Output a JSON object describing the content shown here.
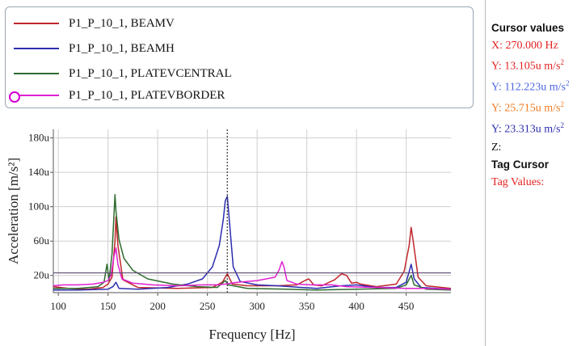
{
  "legend": [
    {
      "label": "P1_P_10_1, BEAMV",
      "color": "#c0262b"
    },
    {
      "label": "P1_P_10_1, BEAMH",
      "color": "#2d2db0"
    },
    {
      "label": "P1_P_10_1, PLATEVCENTRAL",
      "color": "#2e6b2e"
    },
    {
      "label": "P1_P_10_1, PLATEVBORDER",
      "color": "#e020d0"
    }
  ],
  "cursor_panel": {
    "title": "Cursor values",
    "x": "X: 270.000 Hz",
    "y1": "Y: 13.105u m/s",
    "y2": "Y: 112.223u m/s",
    "y3": "Y: 25.715u m/s",
    "y4": "Y: 23.313u m/s",
    "sup": "2",
    "z": "Z:",
    "tag_cursor": "Tag Cursor",
    "tag_values": "Tag Values:",
    "colors": {
      "x": "#e52222",
      "y1": "#e52222",
      "y2": "#4a66e0",
      "y3": "#f07a20",
      "y4": "#2c2cb0"
    }
  },
  "chart_data": {
    "type": "line",
    "xlabel": "Frequency [Hz]",
    "ylabel": "Acceleration [m/s²]",
    "xlim": [
      95,
      495
    ],
    "ylim": [
      0,
      190
    ],
    "x_ticks": [
      "100",
      "150",
      "200",
      "250",
      "300",
      "350",
      "400",
      "450"
    ],
    "x_tick_values": [
      100,
      150,
      200,
      250,
      300,
      350,
      400,
      450
    ],
    "y_ticks": [
      "20u",
      "60u",
      "100u",
      "140u",
      "180u"
    ],
    "y_tick_values": [
      20,
      60,
      100,
      140,
      180
    ],
    "grid": true,
    "cursor_x": 270,
    "cursor_y_line": 23,
    "series": [
      {
        "name": "P1_P_10_1, BEAMV",
        "color": "#c0262b",
        "points": [
          [
            95,
            7
          ],
          [
            110,
            5
          ],
          [
            130,
            4
          ],
          [
            145,
            6
          ],
          [
            150,
            10
          ],
          [
            154,
            18
          ],
          [
            157,
            60
          ],
          [
            158,
            88
          ],
          [
            160,
            55
          ],
          [
            165,
            15
          ],
          [
            180,
            6
          ],
          [
            220,
            5
          ],
          [
            255,
            6
          ],
          [
            265,
            12
          ],
          [
            270,
            22
          ],
          [
            275,
            10
          ],
          [
            290,
            8
          ],
          [
            320,
            8
          ],
          [
            340,
            9
          ],
          [
            348,
            14
          ],
          [
            352,
            16
          ],
          [
            357,
            9
          ],
          [
            365,
            8
          ],
          [
            378,
            15
          ],
          [
            385,
            22
          ],
          [
            390,
            20
          ],
          [
            395,
            11
          ],
          [
            400,
            12
          ],
          [
            404,
            10
          ],
          [
            420,
            7
          ],
          [
            440,
            10
          ],
          [
            448,
            25
          ],
          [
            453,
            55
          ],
          [
            455,
            76
          ],
          [
            457,
            60
          ],
          [
            462,
            18
          ],
          [
            470,
            8
          ],
          [
            495,
            5
          ]
        ]
      },
      {
        "name": "P1_P_10_1, BEAMH",
        "color": "#2d2db0",
        "points": [
          [
            95,
            3
          ],
          [
            120,
            3
          ],
          [
            150,
            4
          ],
          [
            155,
            7
          ],
          [
            158,
            12
          ],
          [
            161,
            5
          ],
          [
            180,
            4
          ],
          [
            210,
            6
          ],
          [
            230,
            10
          ],
          [
            245,
            16
          ],
          [
            255,
            30
          ],
          [
            262,
            55
          ],
          [
            266,
            85
          ],
          [
            268,
            107
          ],
          [
            270,
            112
          ],
          [
            272,
            85
          ],
          [
            276,
            30
          ],
          [
            283,
            13
          ],
          [
            300,
            9
          ],
          [
            320,
            8
          ],
          [
            345,
            6
          ],
          [
            360,
            5
          ],
          [
            385,
            8
          ],
          [
            400,
            9
          ],
          [
            420,
            6
          ],
          [
            440,
            6
          ],
          [
            450,
            12
          ],
          [
            455,
            33
          ],
          [
            458,
            16
          ],
          [
            465,
            6
          ],
          [
            495,
            4
          ]
        ]
      },
      {
        "name": "P1_P_10_1, PLATEVCENTRAL",
        "color": "#2e6b2e",
        "points": [
          [
            95,
            5
          ],
          [
            120,
            5
          ],
          [
            140,
            7
          ],
          [
            146,
            12
          ],
          [
            149,
            33
          ],
          [
            151,
            14
          ],
          [
            154,
            45
          ],
          [
            156,
            90
          ],
          [
            157,
            114
          ],
          [
            158,
            95
          ],
          [
            161,
            62
          ],
          [
            166,
            40
          ],
          [
            175,
            26
          ],
          [
            190,
            16
          ],
          [
            215,
            10
          ],
          [
            240,
            7
          ],
          [
            260,
            6
          ],
          [
            268,
            14
          ],
          [
            271,
            9
          ],
          [
            290,
            5
          ],
          [
            330,
            4
          ],
          [
            360,
            3
          ],
          [
            400,
            4
          ],
          [
            440,
            5
          ],
          [
            450,
            9
          ],
          [
            455,
            20
          ],
          [
            458,
            9
          ],
          [
            470,
            4
          ],
          [
            495,
            3
          ]
        ]
      },
      {
        "name": "P1_P_10_1, PLATEVBORDER",
        "color": "#e020d0",
        "points": [
          [
            95,
            8
          ],
          [
            105,
            9
          ],
          [
            120,
            9
          ],
          [
            135,
            10
          ],
          [
            145,
            12
          ],
          [
            150,
            14
          ],
          [
            153,
            20
          ],
          [
            156,
            42
          ],
          [
            158,
            52
          ],
          [
            160,
            33
          ],
          [
            164,
            16
          ],
          [
            175,
            11
          ],
          [
            195,
            9
          ],
          [
            220,
            8
          ],
          [
            245,
            9
          ],
          [
            260,
            9
          ],
          [
            268,
            10
          ],
          [
            280,
            12
          ],
          [
            300,
            14
          ],
          [
            318,
            18
          ],
          [
            322,
            26
          ],
          [
            325,
            36
          ],
          [
            327,
            30
          ],
          [
            330,
            14
          ],
          [
            340,
            10
          ],
          [
            355,
            9
          ],
          [
            375,
            9
          ],
          [
            390,
            7
          ],
          [
            420,
            6
          ],
          [
            450,
            5
          ],
          [
            470,
            5
          ],
          [
            495,
            4
          ]
        ]
      }
    ]
  }
}
